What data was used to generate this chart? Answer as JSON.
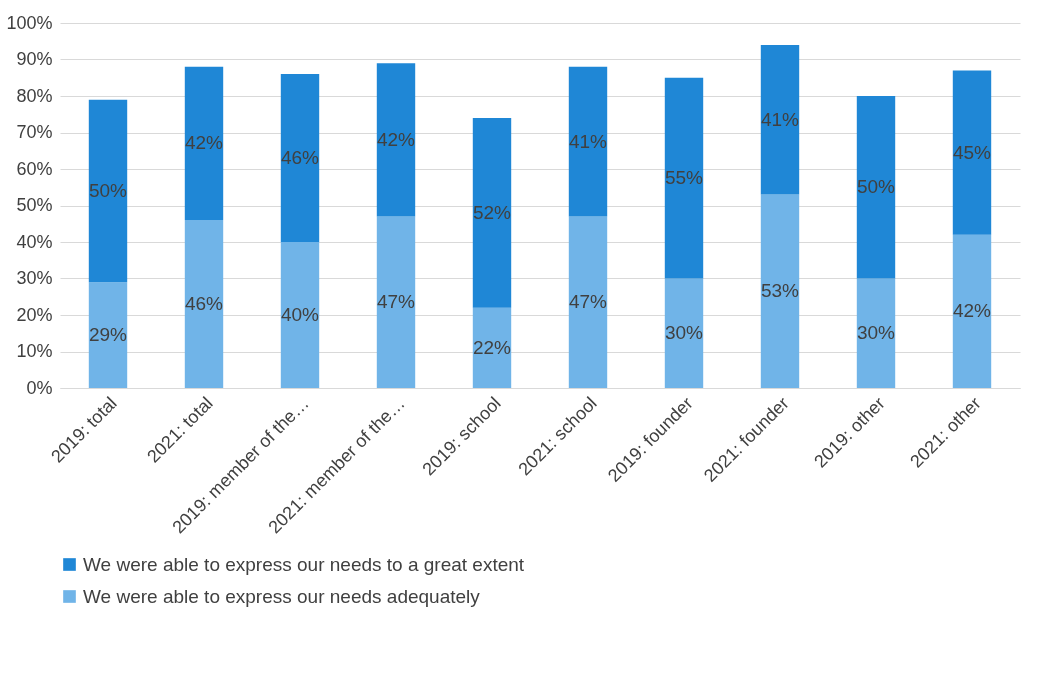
{
  "chart_data": {
    "type": "bar",
    "stacked": true,
    "categories": [
      "2019: total",
      "2021: total",
      "2019: member of the…",
      "2021: member of the…",
      "2019: school",
      "2021: school",
      "2019: founder",
      "2021: founder",
      "2019: other",
      "2021: other"
    ],
    "series": [
      {
        "name": "We were able to express our needs adequately",
        "color": "#70b4e8",
        "values": [
          29,
          46,
          40,
          47,
          22,
          47,
          30,
          53,
          30,
          42
        ],
        "value_labels": [
          "29%",
          "46%",
          "40%",
          "47%",
          "22%",
          "47%",
          "30%",
          "53%",
          "30%",
          "42%"
        ]
      },
      {
        "name": "We were able to express our needs to a great extent",
        "color": "#1f87d6",
        "values": [
          50,
          42,
          46,
          42,
          52,
          41,
          55,
          41,
          50,
          45
        ],
        "value_labels": [
          "50%",
          "42%",
          "46%",
          "42%",
          "52%",
          "41%",
          "55%",
          "41%",
          "50%",
          "45%"
        ]
      }
    ],
    "ylim": [
      0,
      100
    ],
    "yticks": [
      {
        "value": 0,
        "label": "0%"
      },
      {
        "value": 10,
        "label": "10%"
      },
      {
        "value": 20,
        "label": "20%"
      },
      {
        "value": 30,
        "label": "30%"
      },
      {
        "value": 40,
        "label": "40%"
      },
      {
        "value": 50,
        "label": "50%"
      },
      {
        "value": 60,
        "label": "60%"
      },
      {
        "value": 70,
        "label": "70%"
      },
      {
        "value": 80,
        "label": "80%"
      },
      {
        "value": 90,
        "label": "90%"
      },
      {
        "value": 100,
        "label": "100%"
      }
    ],
    "grid": "y",
    "legend": "bottom"
  }
}
